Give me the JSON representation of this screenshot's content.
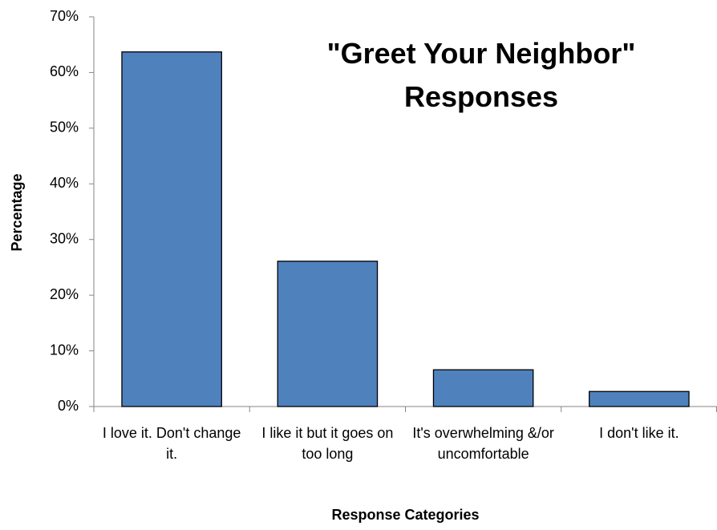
{
  "chart_data": {
    "type": "bar",
    "title": "\"Greet Your Neighbor\" Responses",
    "x_label": "Response Categories",
    "y_label": "Percentage",
    "categories": [
      "I love it. Don't change it.",
      "I like it but it goes on too long",
      "It's overwhelming &/or uncomfortable",
      "I don't like it."
    ],
    "values": [
      63.7,
      26.1,
      6.6,
      2.7
    ],
    "color": "#4f81bd",
    "ylim": [
      0,
      70
    ],
    "yticks": [
      {
        "value": 0,
        "label": "0%"
      },
      {
        "value": 10,
        "label": "10%"
      },
      {
        "value": 20,
        "label": "20%"
      },
      {
        "value": 30,
        "label": "30%"
      },
      {
        "value": 40,
        "label": "40%"
      },
      {
        "value": 50,
        "label": "50%"
      },
      {
        "value": 60,
        "label": "60%"
      },
      {
        "value": 70,
        "label": "70%"
      }
    ],
    "grid": false
  }
}
